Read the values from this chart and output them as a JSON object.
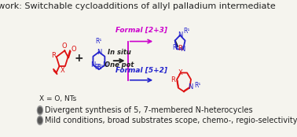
{
  "title": "This work: Switchable cycloadditions of allyl palladium intermediate",
  "title_fontsize": 8.0,
  "bg_color": "#f5f4ee",
  "bullet1": "Divergent synthesis of 5, 7-membered N-heterocycles",
  "bullet2": "Mild conditions, broad substrates scope, chemo-, regio-selectivity switchable",
  "formal23_label": "Formal [2+3]",
  "formal52_label": "Formal [5+2]",
  "in_situ_line1": "In situ",
  "in_situ_line2": "One pot",
  "x_label": "X = O, NTs",
  "color_red": "#dd1111",
  "color_blue": "#2222cc",
  "color_magenta": "#cc00cc",
  "color_black": "#222222",
  "color_bg_box": "#f9e8ff"
}
